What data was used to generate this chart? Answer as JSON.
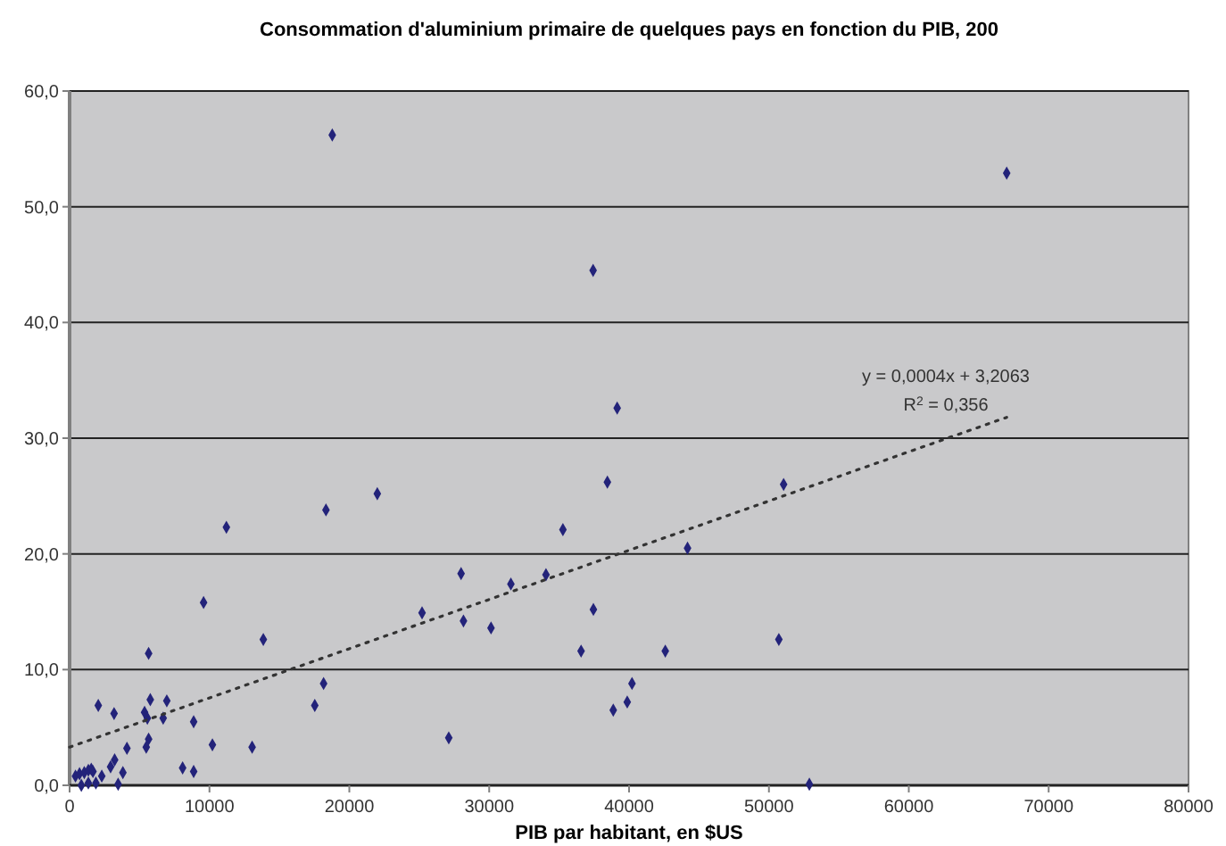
{
  "chart_data": {
    "type": "scatter",
    "title": "Consommation d'aluminium primaire de quelques pays en fonction du PIB, 200",
    "xlabel": "PIB par habitant, en $US",
    "xlim": [
      0,
      80000
    ],
    "xticks": [
      0,
      10000,
      20000,
      30000,
      40000,
      50000,
      60000,
      70000,
      80000
    ],
    "ylim": [
      0,
      60
    ],
    "yticks": [
      {
        "value": 0,
        "label": "0,0"
      },
      {
        "value": 10,
        "label": "10,0"
      },
      {
        "value": 20,
        "label": "20,0"
      },
      {
        "value": 30,
        "label": "30,0"
      },
      {
        "value": 40,
        "label": "40,0"
      },
      {
        "value": 50,
        "label": "50,0"
      },
      {
        "value": 60,
        "label": "60,0"
      }
    ],
    "grid": "y",
    "series": [
      {
        "color": "#23237a",
        "marker": "diamond",
        "x": [
          420,
          710,
          840,
          1050,
          1340,
          1550,
          1670,
          1340,
          1880,
          2050,
          2300,
          2930,
          3220,
          3180,
          3470,
          3810,
          4100,
          5360,
          5560,
          5650,
          5480,
          5650,
          5770,
          6690,
          6950,
          8080,
          8870,
          8870,
          9580,
          10210,
          11210,
          13050,
          13850,
          17530,
          18160,
          18330,
          22000,
          25200,
          27110,
          27990,
          28160,
          30130,
          31550,
          34060,
          35270,
          36570,
          37450,
          38450,
          38870,
          39870,
          40210,
          42590,
          44180,
          50710,
          51050,
          52890,
          18780,
          37430,
          39150,
          67000
        ],
        "values": [
          0.8,
          1.0,
          0.0,
          1.1,
          1.3,
          1.4,
          1.2,
          0.2,
          0.2,
          6.9,
          0.8,
          1.6,
          2.2,
          6.2,
          0.1,
          1.1,
          3.2,
          6.3,
          5.8,
          4.0,
          3.3,
          11.4,
          7.4,
          5.8,
          7.3,
          1.5,
          5.5,
          1.2,
          15.8,
          3.5,
          22.3,
          3.3,
          12.6,
          6.9,
          8.8,
          23.8,
          25.2,
          14.9,
          4.1,
          18.3,
          14.2,
          13.6,
          17.4,
          18.2,
          22.1,
          11.6,
          15.2,
          26.2,
          6.5,
          7.2,
          8.8,
          11.6,
          20.5,
          12.6,
          26.0,
          0.1,
          56.2,
          44.5,
          32.6,
          52.9
        ]
      },
      {
        "type": "line",
        "color": "#333333",
        "line_style": "dotted",
        "marker": "none",
        "x": [
          0,
          67000
        ],
        "values": [
          3.3,
          31.8
        ]
      }
    ],
    "annotations": [
      "y = 0,0004x + 3,2063",
      "R$^{2}$ = 0,356"
    ]
  }
}
